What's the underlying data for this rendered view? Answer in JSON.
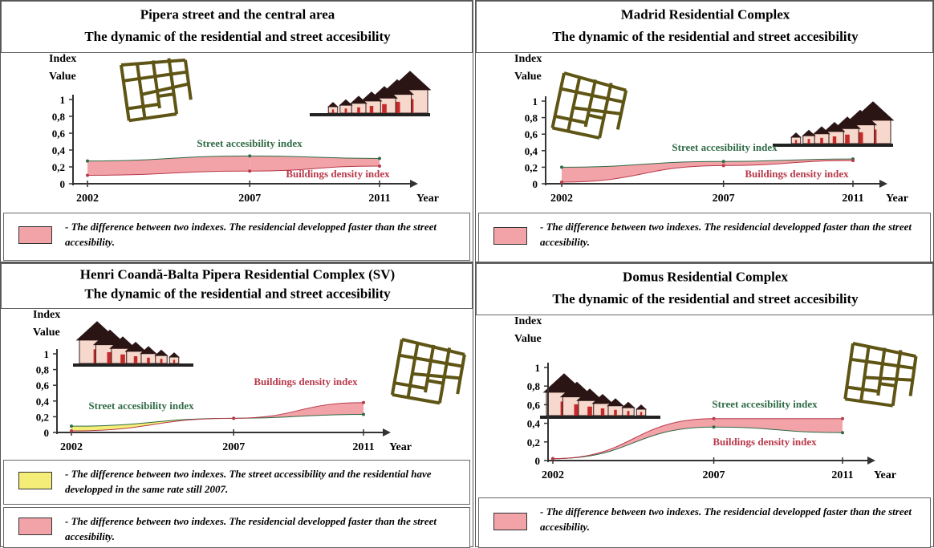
{
  "chart_data": [
    {
      "type": "line",
      "title": "Pipera street and the central area",
      "subtitle": "The dynamic of the residential and street accesibility",
      "ylabel": "Index Value",
      "xlabel": "Year",
      "x": [
        2002,
        2007,
        2011
      ],
      "xlim": [
        2002,
        2011
      ],
      "xticks": [
        2002,
        2007,
        2011
      ],
      "ylim": [
        0,
        1
      ],
      "yticks": [
        0,
        {
          "value": 0.2,
          "label": "0,2"
        },
        {
          "value": 0.4,
          "label": "0,4"
        },
        {
          "value": 0.6,
          "label": "0,6"
        },
        {
          "value": 0.8,
          "label": "0,8"
        },
        1
      ],
      "series": [
        {
          "name": "Street accesibility index",
          "color": "#2f6b45",
          "values": [
            0.27,
            0.33,
            0.3
          ]
        },
        {
          "name": "Buildings density index",
          "color": "#b8394a",
          "values": [
            0.1,
            0.15,
            0.21
          ]
        }
      ],
      "fill_colors": [
        "#f2a3a8",
        "#f2a3a8"
      ],
      "notes": [
        {
          "color": "#f2a3a8",
          "text": "- The difference between two indexes. The residencial developped faster than the street accesibility."
        }
      ]
    },
    {
      "type": "line",
      "title": "Madrid Residential Complex",
      "subtitle": "The dynamic of the residential and street accesibility",
      "ylabel": "Index Value",
      "xlabel": "Year",
      "x": [
        2002,
        2007,
        2011
      ],
      "xlim": [
        2002,
        2011
      ],
      "xticks": [
        2002,
        2007,
        2011
      ],
      "ylim": [
        0,
        1
      ],
      "yticks": [
        0,
        {
          "value": 0.2,
          "label": "0,2"
        },
        {
          "value": 0.4,
          "label": "0,4"
        },
        {
          "value": 0.6,
          "label": "0,6"
        },
        {
          "value": 0.8,
          "label": "0,8"
        },
        1
      ],
      "series": [
        {
          "name": "Street accesibility index",
          "color": "#2f6b45",
          "values": [
            0.2,
            0.27,
            0.3
          ]
        },
        {
          "name": "Buildings density index",
          "color": "#b8394a",
          "values": [
            0.02,
            0.22,
            0.28
          ]
        }
      ],
      "fill_colors": [
        "#f2a3a8",
        "#f2a3a8"
      ],
      "notes": [
        {
          "color": "#f2a3a8",
          "text": "- The difference between two indexes. The residencial developped faster than the street accesibility."
        }
      ]
    },
    {
      "type": "line",
      "title": "Henri Coandă-Balta Pipera Residential Complex (SV)",
      "subtitle": "The dynamic of the residential and street accesibility",
      "ylabel": "Index Value",
      "xlabel": "Year",
      "x": [
        2002,
        2007,
        2011
      ],
      "xlim": [
        2002,
        2011
      ],
      "xticks": [
        2002,
        2007,
        2011
      ],
      "ylim": [
        0,
        1
      ],
      "yticks": [
        0,
        {
          "value": 0.2,
          "label": "0,2"
        },
        {
          "value": 0.4,
          "label": "0,4"
        },
        {
          "value": 0.6,
          "label": "0,6"
        },
        {
          "value": 0.8,
          "label": "0,8"
        },
        1
      ],
      "series": [
        {
          "name": "Street accesibility index",
          "color": "#2f6b45",
          "values": [
            0.08,
            0.18,
            0.23
          ]
        },
        {
          "name": "Buildings density index",
          "color": "#b8394a",
          "values": [
            0.02,
            0.18,
            0.38
          ]
        }
      ],
      "fill_colors": [
        "#f4ee78",
        "#f2a3a8"
      ],
      "notes": [
        {
          "color": "#f4ee78",
          "text": "- The difference between two indexes. The street accessibility and the residential have developped in the same rate still 2007."
        },
        {
          "color": "#f2a3a8",
          "text": "- The difference between two indexes. The residencial developped faster than the street accesibility."
        }
      ]
    },
    {
      "type": "line",
      "title": "Domus Residential Complex",
      "subtitle": "The dynamic of the residential and street accesibility",
      "ylabel": "Index Value",
      "xlabel": "Year",
      "x": [
        2002,
        2007,
        2011
      ],
      "xlim": [
        2002,
        2011
      ],
      "xticks": [
        2002,
        2007,
        2011
      ],
      "ylim": [
        0,
        1
      ],
      "yticks": [
        0,
        {
          "value": 0.2,
          "label": "0,2"
        },
        {
          "value": 0.4,
          "label": "0,4"
        },
        {
          "value": 0.6,
          "label": "0,6"
        },
        {
          "value": 0.8,
          "label": "0,8"
        },
        1
      ],
      "series": [
        {
          "name": "Street accesibility index",
          "color": "#2f6b45",
          "values": [
            0.02,
            0.36,
            0.3
          ]
        },
        {
          "name": "Buildings density index",
          "color": "#b8394a",
          "values": [
            0.02,
            0.45,
            0.45
          ]
        }
      ],
      "fill_colors": [
        "#f2a3a8",
        "#f2a3a8"
      ],
      "notes": [
        {
          "color": "#f2a3a8",
          "text": "- The difference between two indexes. The residencial developped faster than the street accesibility."
        }
      ]
    }
  ]
}
